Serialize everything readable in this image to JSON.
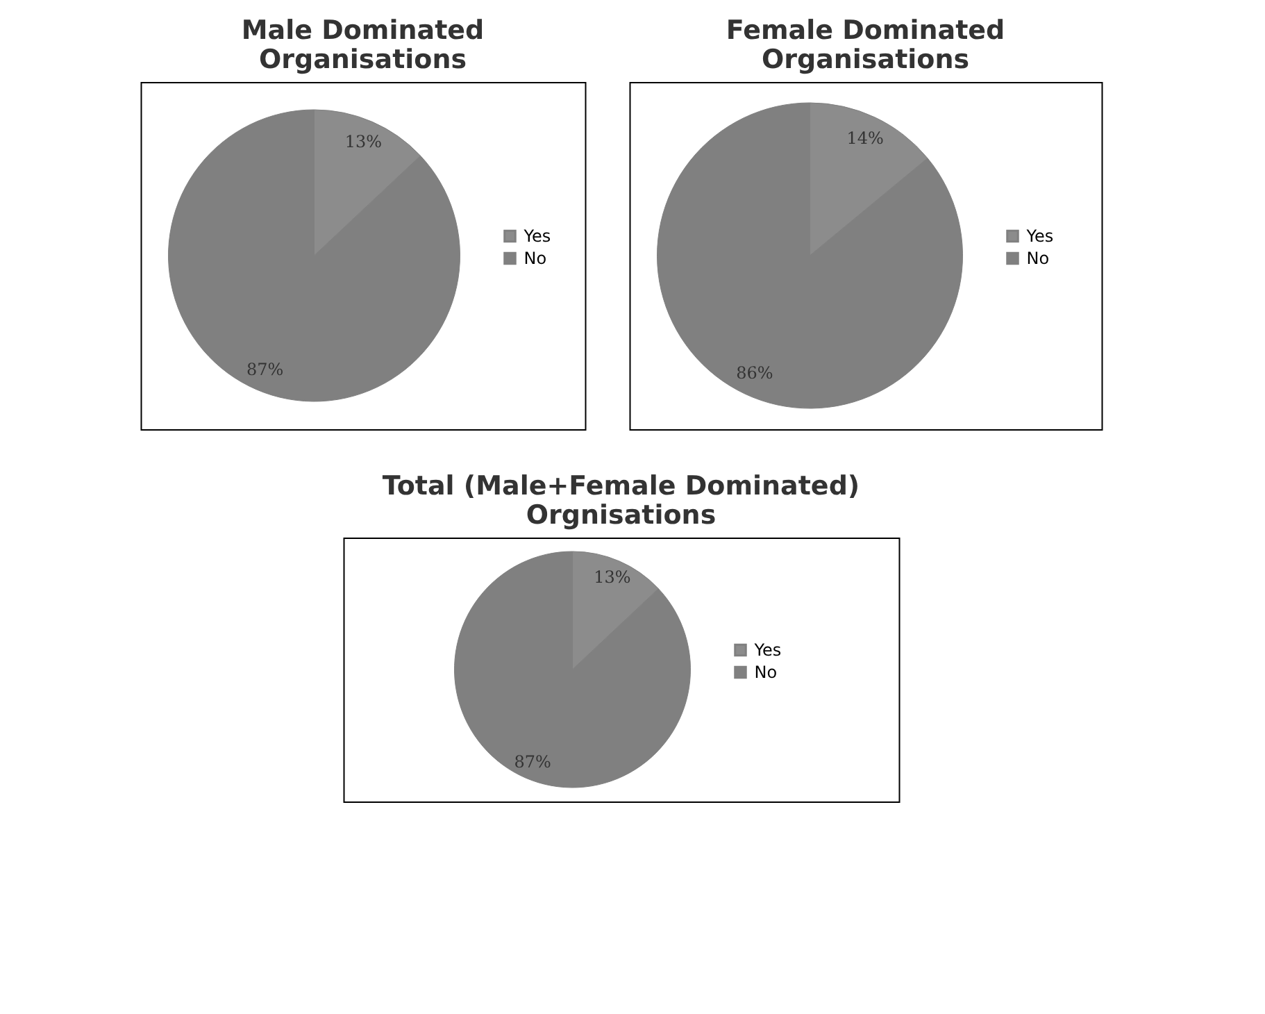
{
  "chart_data": [
    {
      "type": "pie",
      "title": "Male Dominated Organisations",
      "categories": [
        "Yes",
        "No"
      ],
      "values": [
        13,
        87
      ],
      "colors": [
        "#8c8c8c",
        "#808080"
      ],
      "value_labels": [
        "13%",
        "87%"
      ],
      "legend": "right"
    },
    {
      "type": "pie",
      "title": "Female Dominated Organisations",
      "categories": [
        "Yes",
        "No"
      ],
      "values": [
        14,
        86
      ],
      "colors": [
        "#8c8c8c",
        "#808080"
      ],
      "value_labels": [
        "14%",
        "86%"
      ],
      "legend": "right"
    },
    {
      "type": "pie",
      "title": "Total (Male+Female Dominated) Orgnisations",
      "categories": [
        "Yes",
        "No"
      ],
      "values": [
        13,
        87
      ],
      "colors": [
        "#8c8c8c",
        "#808080"
      ],
      "value_labels": [
        "13%",
        "87%"
      ],
      "legend": "right"
    }
  ]
}
